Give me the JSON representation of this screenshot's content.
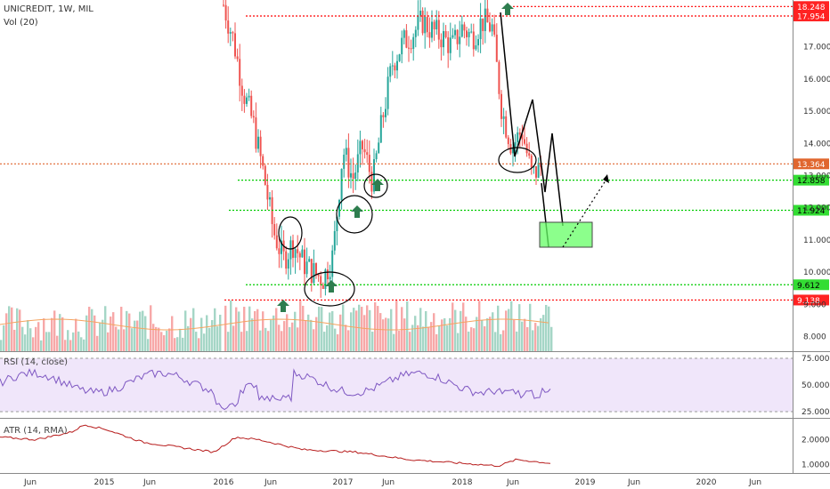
{
  "header": {
    "symbol_line": "UNICREDIT, 1W, MIL",
    "volume_label": "Vol (20)"
  },
  "panels": {
    "rsi_title": "RSI (14, close)",
    "atr_title": "ATR (14, RMA)"
  },
  "colors": {
    "up": "#26a69a",
    "down": "#ef5350",
    "vol_up": "#a5d6c6",
    "vol_down": "#f7a8a8",
    "red_level": "#ff0000",
    "green_level": "#00cc00",
    "orange_level": "#e0662e",
    "rsi_line": "#7e57c2",
    "rsi_band": "#f0e6fa",
    "atr_line": "#b71c1c",
    "vol_ma": "#f4a460",
    "arrow": "#2e7d4f",
    "zone": "#66ff66",
    "ink": "#000000"
  },
  "chart_data": {
    "type": "candlestick",
    "symbol": "UNICREDIT",
    "interval": "1W",
    "exchange": "MIL",
    "ylim": [
      7.55,
      18.45
    ],
    "x_ticks": [
      "Jun",
      "2015",
      "Jun",
      "2016",
      "Jun",
      "2017",
      "Jun",
      "2018",
      "Jun",
      "2019",
      "Jun",
      "2020",
      "Jun"
    ],
    "y_ticks": [
      "8.000",
      "9.000",
      "10.000",
      "11.000",
      "12.000",
      "13.000",
      "14.000",
      "15.000",
      "16.000",
      "17.000"
    ],
    "price_levels": [
      {
        "value": 18.248,
        "label": "18.248",
        "color": "red",
        "style": "dotted"
      },
      {
        "value": 17.954,
        "label": "17.954",
        "color": "red",
        "style": "dotted"
      },
      {
        "value": 13.364,
        "label": "13.364",
        "color": "orange",
        "style": "dotted"
      },
      {
        "value": 12.858,
        "label": "12.858",
        "color": "green",
        "style": "dotted"
      },
      {
        "value": 11.924,
        "label": "11.924",
        "color": "green",
        "style": "dotted"
      },
      {
        "value": 9.612,
        "label": "9.612",
        "color": "green",
        "style": "dotted"
      },
      {
        "value": 9.138,
        "label": "9.138",
        "color": "red",
        "style": "dotted"
      }
    ],
    "price_path": [
      [
        "2016-01",
        18.3
      ],
      [
        "2016-02",
        17.2
      ],
      [
        "2016-03",
        15.6
      ],
      [
        "2016-04",
        14.6
      ],
      [
        "2016-05",
        13.1
      ],
      [
        "2016-06",
        11.3
      ],
      [
        "2016-07",
        10.4
      ],
      [
        "2016-08",
        10.9
      ],
      [
        "2016-09",
        10.3
      ],
      [
        "2016-10",
        10.0
      ],
      [
        "2016-11",
        9.8
      ],
      [
        "2016-12",
        10.5
      ],
      [
        "2017-01",
        13.8
      ],
      [
        "2017-02",
        12.9
      ],
      [
        "2017-03",
        13.9
      ],
      [
        "2017-04",
        12.8
      ],
      [
        "2017-05",
        14.8
      ],
      [
        "2017-06",
        16.5
      ],
      [
        "2017-07",
        17.1
      ],
      [
        "2017-08",
        17.4
      ],
      [
        "2017-09",
        17.8
      ],
      [
        "2017-10",
        17.5
      ],
      [
        "2017-11",
        17.3
      ],
      [
        "2017-12",
        17.0
      ],
      [
        "2018-01",
        17.6
      ],
      [
        "2018-02",
        17.3
      ],
      [
        "2018-03",
        17.8
      ],
      [
        "2018-04",
        17.6
      ],
      [
        "2018-05",
        15.0
      ],
      [
        "2018-06",
        13.9
      ],
      [
        "2018-07",
        14.4
      ],
      [
        "2018-08",
        13.0
      ],
      [
        "2018-09",
        13.3
      ]
    ],
    "rsi": {
      "title": "RSI (14, close)",
      "upper": 75,
      "lower": 25,
      "ticks": [
        "75.0000",
        "50.0000",
        "25.0000"
      ]
    },
    "atr": {
      "title": "ATR (14, RMA)",
      "ticks": [
        "2.0000",
        "1.0000"
      ]
    },
    "volume": {
      "title": "Vol (20)"
    }
  }
}
